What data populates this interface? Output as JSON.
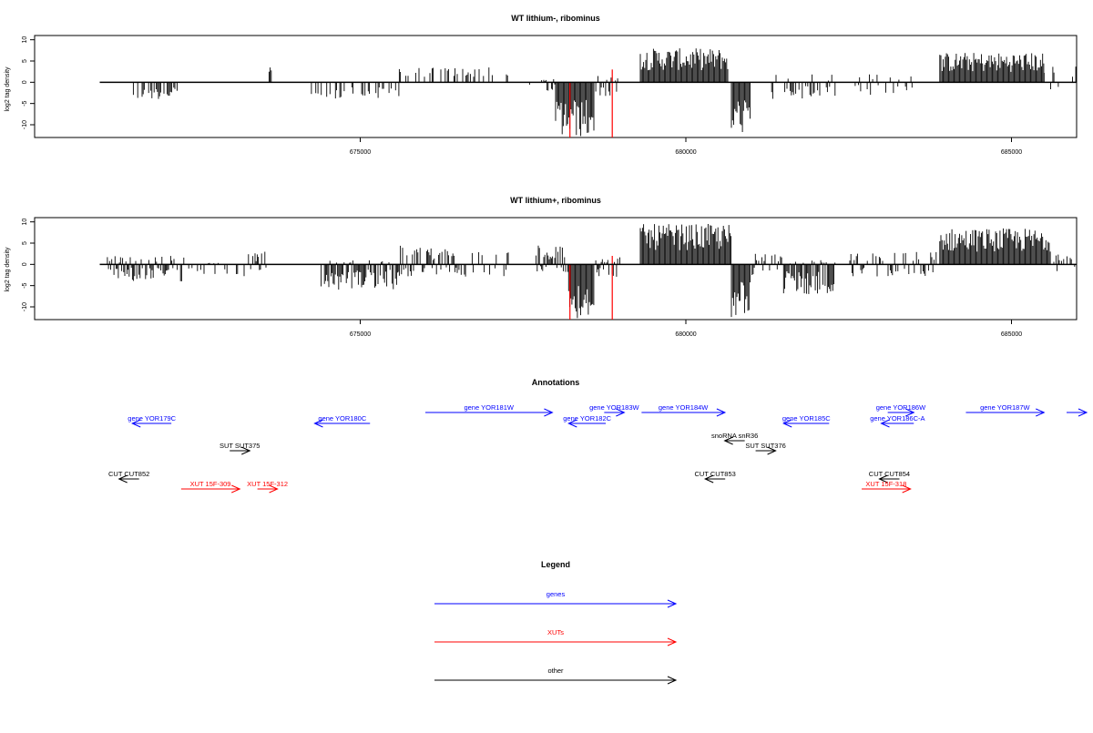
{
  "colors": {
    "gene": "#0000ff",
    "xut": "#ff0000",
    "other": "#000000",
    "spike": "#ff0000",
    "bar": "#000000"
  },
  "chart_data": [
    {
      "type": "bar",
      "title": "WT lithium-, ribominus",
      "ylabel": "log2 tag density",
      "ylim": [
        -13,
        11
      ],
      "xlim": [
        670000,
        686000
      ],
      "yticks": [
        "-10",
        "-5",
        "0",
        "5",
        "10"
      ],
      "ytick_values": [
        -10,
        -5,
        0,
        5,
        10
      ],
      "xticks": [
        "675000",
        "680000",
        "685000"
      ],
      "xtick_values": [
        675000,
        680000,
        685000
      ],
      "baseline": [
        671000,
        686000
      ],
      "red_spikes": [
        {
          "x": 678870,
          "value": 3
        },
        {
          "x": 678870,
          "value": -13
        },
        {
          "x": 678220,
          "value": -13
        }
      ],
      "regions": [
        {
          "start": 671500,
          "end": 672200,
          "min": -4,
          "max": 0,
          "density": 0.55
        },
        {
          "start": 673600,
          "end": 673650,
          "min": 0,
          "max": 4,
          "density": 1
        },
        {
          "start": 674200,
          "end": 675600,
          "min": -4,
          "max": 0,
          "density": 0.35
        },
        {
          "start": 675600,
          "end": 677300,
          "min": 0,
          "max": 3.5,
          "density": 0.35
        },
        {
          "start": 677600,
          "end": 678000,
          "min": -2,
          "max": 1,
          "density": 0.5
        },
        {
          "start": 678000,
          "end": 678600,
          "min": -13,
          "max": 0,
          "density": 1
        },
        {
          "start": 678600,
          "end": 679000,
          "min": -4,
          "max": 1.5,
          "density": 0.6
        },
        {
          "start": 679300,
          "end": 680650,
          "min": 0,
          "max": 8,
          "density": 1
        },
        {
          "start": 680700,
          "end": 681000,
          "min": -12,
          "max": 0,
          "density": 1
        },
        {
          "start": 681300,
          "end": 682300,
          "min": -4,
          "max": 2,
          "density": 0.45
        },
        {
          "start": 682600,
          "end": 683500,
          "min": -3,
          "max": 2,
          "density": 0.3
        },
        {
          "start": 683900,
          "end": 685500,
          "min": 0,
          "max": 7,
          "density": 1
        },
        {
          "start": 685500,
          "end": 686000,
          "min": -3,
          "max": 4,
          "density": 0.3
        }
      ]
    },
    {
      "type": "bar",
      "title": "WT lithium+, ribominus",
      "ylabel": "log2 tag density",
      "ylim": [
        -13,
        11
      ],
      "xlim": [
        670000,
        686000
      ],
      "yticks": [
        "-10",
        "-5",
        "0",
        "5",
        "10"
      ],
      "ytick_values": [
        -10,
        -5,
        0,
        5,
        10
      ],
      "xticks": [
        "675000",
        "680000",
        "685000"
      ],
      "xtick_values": [
        675000,
        680000,
        685000
      ],
      "baseline": [
        671000,
        686000
      ],
      "red_spikes": [
        {
          "x": 678870,
          "value": 2
        },
        {
          "x": 678870,
          "value": -13
        },
        {
          "x": 678220,
          "value": -13
        }
      ],
      "regions": [
        {
          "start": 671100,
          "end": 672300,
          "min": -4,
          "max": 2,
          "density": 0.8
        },
        {
          "start": 672300,
          "end": 673100,
          "min": -3,
          "max": 1,
          "density": 0.3
        },
        {
          "start": 673100,
          "end": 673600,
          "min": -3,
          "max": 3,
          "density": 0.5
        },
        {
          "start": 674400,
          "end": 675600,
          "min": -6,
          "max": 1,
          "density": 0.9
        },
        {
          "start": 675600,
          "end": 676500,
          "min": -3,
          "max": 4.5,
          "density": 0.8
        },
        {
          "start": 676500,
          "end": 677300,
          "min": -3,
          "max": 3,
          "density": 0.45
        },
        {
          "start": 677700,
          "end": 678200,
          "min": -2,
          "max": 4.5,
          "density": 0.9
        },
        {
          "start": 678200,
          "end": 678600,
          "min": -13,
          "max": 0,
          "density": 1
        },
        {
          "start": 678600,
          "end": 679000,
          "min": -3,
          "max": 2,
          "density": 0.6
        },
        {
          "start": 679300,
          "end": 680700,
          "min": 0,
          "max": 9.5,
          "density": 1
        },
        {
          "start": 680700,
          "end": 681000,
          "min": -13,
          "max": 0,
          "density": 1
        },
        {
          "start": 681000,
          "end": 681500,
          "min": -3,
          "max": 3,
          "density": 0.7
        },
        {
          "start": 681500,
          "end": 682300,
          "min": -7,
          "max": 1,
          "density": 1
        },
        {
          "start": 682500,
          "end": 683900,
          "min": -3,
          "max": 3,
          "density": 0.55
        },
        {
          "start": 683900,
          "end": 685600,
          "min": 0,
          "max": 8.5,
          "density": 1
        },
        {
          "start": 685600,
          "end": 686000,
          "min": -2,
          "max": 3,
          "density": 0.4
        }
      ]
    }
  ],
  "annotations": {
    "title": "Annotations",
    "x_range": [
      670000,
      686000
    ],
    "features": [
      {
        "label": "gene YOR179C",
        "kind": "gene",
        "start": 671500,
        "end": 672100,
        "dir": "-",
        "row": 1
      },
      {
        "label": "gene YOR180C",
        "kind": "gene",
        "start": 674300,
        "end": 675150,
        "dir": "-",
        "row": 1
      },
      {
        "label": "gene YOR181W",
        "kind": "gene",
        "start": 676000,
        "end": 677950,
        "dir": "+",
        "row": 0
      },
      {
        "label": "gene YOR182C",
        "kind": "gene",
        "start": 678200,
        "end": 678770,
        "dir": "-",
        "row": 1
      },
      {
        "label": "gene YOR183W",
        "kind": "gene",
        "start": 678800,
        "end": 679000,
        "dir": "+",
        "row": 0
      },
      {
        "label": "gene YOR184W",
        "kind": "gene",
        "start": 679320,
        "end": 680600,
        "dir": "+",
        "row": 0
      },
      {
        "label": "gene YOR185C",
        "kind": "gene",
        "start": 681500,
        "end": 682200,
        "dir": "-",
        "row": 1
      },
      {
        "label": "gene YOR186W",
        "kind": "gene",
        "start": 683100,
        "end": 683500,
        "dir": "+",
        "row": 0
      },
      {
        "label": "gene YOR186C-A",
        "kind": "gene",
        "start": 683000,
        "end": 683500,
        "dir": "-",
        "row": 1
      },
      {
        "label": "gene YOR187W",
        "kind": "gene",
        "start": 684300,
        "end": 685500,
        "dir": "+",
        "row": 0
      },
      {
        "label": "",
        "kind": "gene",
        "start": 686000,
        "end": 686800,
        "dir": "+",
        "row": 0
      },
      {
        "label": "SUT SUT375",
        "kind": "other",
        "start": 673000,
        "end": 673300,
        "dir": "+",
        "row": 3
      },
      {
        "label": "snoRNA snR36",
        "kind": "other",
        "start": 680700,
        "end": 680800,
        "dir": "-",
        "row": 2
      },
      {
        "label": "SUT SUT376",
        "kind": "other",
        "start": 681100,
        "end": 681350,
        "dir": "+",
        "row": 3
      },
      {
        "label": "CUT CUT852",
        "kind": "other",
        "start": 671400,
        "end": 671500,
        "dir": "-",
        "row": 4
      },
      {
        "label": "CUT CUT853",
        "kind": "other",
        "start": 680300,
        "end": 680600,
        "dir": "-",
        "row": 4
      },
      {
        "label": "CUT CUT854",
        "kind": "other",
        "start": 683050,
        "end": 683200,
        "dir": "-",
        "row": 4
      },
      {
        "label": "XUT 15F-309",
        "kind": "xut",
        "start": 672250,
        "end": 673150,
        "dir": "+",
        "row": 5
      },
      {
        "label": "XUT 15F-312",
        "kind": "xut",
        "start": 673450,
        "end": 673700,
        "dir": "+",
        "row": 5
      },
      {
        "label": "XUT 15F-318",
        "kind": "xut",
        "start": 682700,
        "end": 683450,
        "dir": "+",
        "row": 5
      }
    ]
  },
  "legend": {
    "title": "Legend",
    "items": [
      {
        "label": "genes",
        "kind": "gene"
      },
      {
        "label": "XUTs",
        "kind": "xut"
      },
      {
        "label": "other",
        "kind": "other"
      }
    ]
  }
}
